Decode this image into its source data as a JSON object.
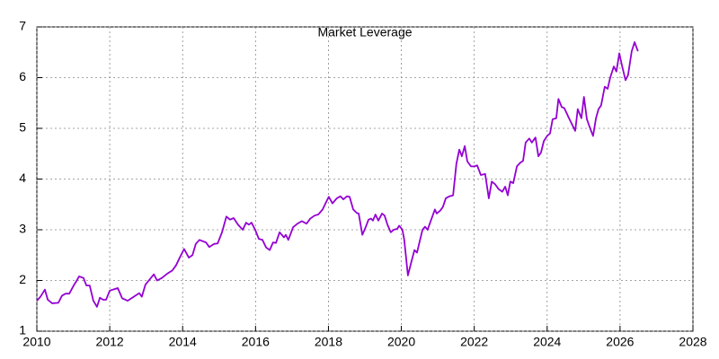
{
  "chart_data": {
    "type": "line",
    "title": "Market Leverage",
    "grid": true,
    "xlim": [
      2010,
      2028
    ],
    "xticks": [
      2010,
      2012,
      2014,
      2016,
      2018,
      2020,
      2022,
      2024,
      2026,
      2028
    ],
    "ylim": [
      1,
      7
    ],
    "yticks": [
      1,
      2,
      3,
      4,
      5,
      6,
      7
    ],
    "x": [
      2010.0,
      2010.1,
      2010.22,
      2010.3,
      2010.42,
      2010.59,
      2010.69,
      2010.79,
      2010.89,
      2011.01,
      2011.08,
      2011.16,
      2011.28,
      2011.36,
      2011.45,
      2011.55,
      2011.65,
      2011.73,
      2011.82,
      2011.9,
      2012.0,
      2012.22,
      2012.34,
      2012.49,
      2012.81,
      2012.88,
      2012.98,
      2013.21,
      2013.3,
      2013.43,
      2013.57,
      2013.72,
      2013.82,
      2013.92,
      2014.04,
      2014.17,
      2014.27,
      2014.36,
      2014.46,
      2014.64,
      2014.73,
      2014.86,
      2014.96,
      2015.08,
      2015.2,
      2015.3,
      2015.4,
      2015.52,
      2015.65,
      2015.74,
      2015.82,
      2015.89,
      2015.99,
      2016.09,
      2016.19,
      2016.29,
      2016.39,
      2016.48,
      2016.56,
      2016.66,
      2016.78,
      2016.83,
      2016.9,
      2017.03,
      2017.15,
      2017.27,
      2017.4,
      2017.5,
      2017.62,
      2017.72,
      2017.84,
      2017.94,
      2018.01,
      2018.11,
      2018.23,
      2018.33,
      2018.41,
      2018.51,
      2018.58,
      2018.68,
      2018.78,
      2018.83,
      2018.93,
      2019.02,
      2019.1,
      2019.17,
      2019.22,
      2019.29,
      2019.37,
      2019.47,
      2019.54,
      2019.62,
      2019.71,
      2019.79,
      2019.89,
      2019.94,
      2020.03,
      2020.08,
      2020.18,
      2020.28,
      2020.36,
      2020.43,
      2020.48,
      2020.58,
      2020.65,
      2020.72,
      2020.82,
      2020.92,
      2020.97,
      2021.07,
      2021.14,
      2021.22,
      2021.32,
      2021.42,
      2021.51,
      2021.59,
      2021.66,
      2021.74,
      2021.81,
      2021.91,
      2022.01,
      2022.08,
      2022.18,
      2022.3,
      2022.4,
      2022.48,
      2022.57,
      2022.67,
      2022.77,
      2022.85,
      2022.92,
      2022.99,
      2023.07,
      2023.17,
      2023.26,
      2023.34,
      2023.41,
      2023.51,
      2023.58,
      2023.68,
      2023.76,
      2023.83,
      2023.91,
      2024.0,
      2024.08,
      2024.15,
      2024.25,
      2024.31,
      2024.4,
      2024.47,
      2024.6,
      2024.77,
      2024.84,
      2024.94,
      2025.01,
      2025.09,
      2025.19,
      2025.26,
      2025.34,
      2025.41,
      2025.48,
      2025.58,
      2025.66,
      2025.73,
      2025.83,
      2025.9,
      2025.98,
      2026.05,
      2026.15,
      2026.22,
      2026.32,
      2026.4,
      2026.49
    ],
    "series": [
      {
        "color": "#9400d3",
        "values": [
          1.6,
          1.68,
          1.82,
          1.62,
          1.55,
          1.56,
          1.7,
          1.74,
          1.74,
          1.9,
          1.98,
          2.08,
          2.05,
          1.9,
          1.9,
          1.6,
          1.48,
          1.66,
          1.62,
          1.62,
          1.8,
          1.85,
          1.65,
          1.6,
          1.75,
          1.68,
          1.92,
          2.12,
          2.0,
          2.05,
          2.13,
          2.2,
          2.3,
          2.45,
          2.62,
          2.45,
          2.5,
          2.72,
          2.8,
          2.75,
          2.66,
          2.72,
          2.73,
          2.95,
          3.26,
          3.2,
          3.23,
          3.1,
          3.0,
          3.14,
          3.1,
          3.14,
          3.0,
          2.82,
          2.8,
          2.65,
          2.6,
          2.75,
          2.74,
          2.95,
          2.85,
          2.9,
          2.8,
          3.05,
          3.12,
          3.17,
          3.12,
          3.22,
          3.28,
          3.3,
          3.4,
          3.55,
          3.65,
          3.52,
          3.62,
          3.66,
          3.6,
          3.66,
          3.65,
          3.4,
          3.33,
          3.32,
          2.9,
          3.05,
          3.2,
          3.22,
          3.18,
          3.3,
          3.18,
          3.32,
          3.28,
          3.1,
          2.95,
          3.0,
          3.02,
          3.08,
          3.0,
          2.8,
          2.1,
          2.38,
          2.6,
          2.55,
          2.7,
          3.0,
          3.06,
          3.0,
          3.2,
          3.4,
          3.32,
          3.38,
          3.45,
          3.62,
          3.66,
          3.68,
          4.3,
          4.58,
          4.45,
          4.65,
          4.35,
          4.25,
          4.25,
          4.27,
          4.08,
          4.1,
          3.62,
          3.95,
          3.9,
          3.8,
          3.75,
          3.85,
          3.68,
          3.95,
          3.92,
          4.25,
          4.32,
          4.36,
          4.72,
          4.8,
          4.72,
          4.82,
          4.45,
          4.52,
          4.75,
          4.85,
          4.9,
          5.18,
          5.2,
          5.58,
          5.42,
          5.4,
          5.2,
          4.95,
          5.38,
          5.2,
          5.62,
          5.18,
          4.98,
          4.85,
          5.2,
          5.38,
          5.45,
          5.82,
          5.78,
          6.0,
          6.22,
          6.12,
          6.48,
          6.25,
          5.95,
          6.05,
          6.52,
          6.7,
          6.52
        ]
      }
    ]
  }
}
